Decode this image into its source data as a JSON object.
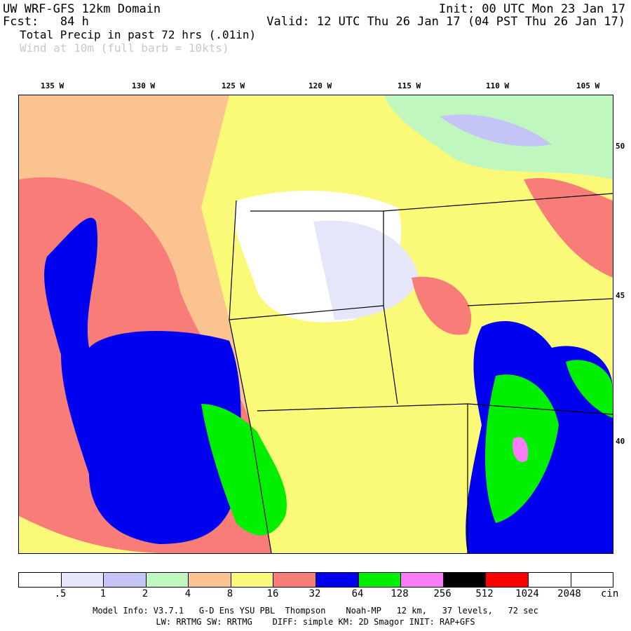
{
  "header": {
    "title": "UW WRF-GFS 12km Domain",
    "fcst": "Fcst:   84 h",
    "init": "Init: 00 UTC Mon 23 Jan 17",
    "valid": "Valid: 12 UTC Thu 26 Jan 17 (04 PST Thu 26 Jan 17)",
    "field_line1": "Total Precip in past 72 hrs (.01in)",
    "field_line2": "Wind at 10m (full barb = 10kts)"
  },
  "map": {
    "lon_labels": [
      "135 W",
      "130 W",
      "125 W",
      "120 W",
      "115 W",
      "110 W",
      "105 W"
    ],
    "lat_labels": [
      "50",
      "45",
      "40"
    ]
  },
  "legend": {
    "colors": [
      "#ffffff",
      "#e6e6fa",
      "#c4c4f6",
      "#bff7bf",
      "#fbc38f",
      "#fafa78",
      "#f87c78",
      "#0000f0",
      "#00f000",
      "#f97cf9",
      "#000000",
      "#ff0000",
      "#ffffff",
      "#ffffff"
    ],
    "ticks": [
      ".5",
      "1",
      "2",
      "4",
      "8",
      "16",
      "32",
      "64",
      "128",
      "256",
      "512",
      "1024",
      "2048"
    ],
    "unit": "cin"
  },
  "footer": {
    "line1": "Model Info: V3.7.1   G-D Ens YSU PBL  Thompson    Noah-MP   12 km,   37 levels,   72 sec",
    "line2": "LW: RRTMG SW: RRTMG    DIFF: simple KM: 2D Smagor INIT: RAP+GFS"
  }
}
